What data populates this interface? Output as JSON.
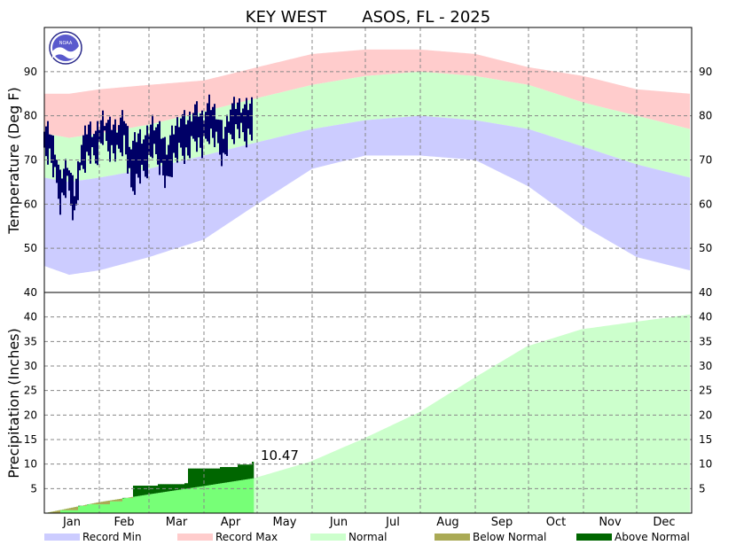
{
  "chart_data": {
    "type": "area",
    "title": "KEY WEST       ASOS, FL - 2025",
    "months": [
      "Jan",
      "Feb",
      "Mar",
      "Apr",
      "May",
      "Jun",
      "Jul",
      "Aug",
      "Sep",
      "Oct",
      "Nov",
      "Dec"
    ],
    "temperature": {
      "ylabel": "Temperature (Deg F)",
      "ylim": [
        40,
        100
      ],
      "ticks": [
        40,
        50,
        60,
        70,
        80,
        90
      ],
      "normal_high": [
        [
          1,
          76
        ],
        [
          15,
          75
        ],
        [
          32,
          76
        ],
        [
          60,
          78
        ],
        [
          91,
          81
        ],
        [
          121,
          84
        ],
        [
          152,
          87
        ],
        [
          182,
          89
        ],
        [
          213,
          90
        ],
        [
          244,
          89
        ],
        [
          274,
          87
        ],
        [
          305,
          83
        ],
        [
          335,
          80
        ],
        [
          365,
          77
        ]
      ],
      "normal_low": [
        [
          1,
          66
        ],
        [
          15,
          65
        ],
        [
          32,
          66
        ],
        [
          60,
          68
        ],
        [
          91,
          71
        ],
        [
          121,
          74
        ],
        [
          152,
          77
        ],
        [
          182,
          79
        ],
        [
          213,
          80
        ],
        [
          244,
          79
        ],
        [
          274,
          77
        ],
        [
          305,
          73
        ],
        [
          335,
          69
        ],
        [
          365,
          66
        ]
      ],
      "record_high": [
        [
          1,
          85
        ],
        [
          15,
          85
        ],
        [
          32,
          86
        ],
        [
          60,
          87
        ],
        [
          91,
          88
        ],
        [
          121,
          91
        ],
        [
          152,
          94
        ],
        [
          182,
          95
        ],
        [
          213,
          95
        ],
        [
          244,
          94
        ],
        [
          274,
          91
        ],
        [
          305,
          89
        ],
        [
          335,
          86
        ],
        [
          365,
          85
        ]
      ],
      "record_low": [
        [
          1,
          46
        ],
        [
          15,
          44
        ],
        [
          32,
          45
        ],
        [
          60,
          48
        ],
        [
          91,
          52
        ],
        [
          121,
          60
        ],
        [
          152,
          68
        ],
        [
          182,
          71
        ],
        [
          213,
          71
        ],
        [
          244,
          70
        ],
        [
          274,
          64
        ],
        [
          305,
          55
        ],
        [
          335,
          48
        ],
        [
          365,
          45
        ]
      ],
      "observed_2025": [
        [
          1,
          72,
          77
        ],
        [
          4,
          71,
          77
        ],
        [
          7,
          66,
          73
        ],
        [
          10,
          60,
          66
        ],
        [
          14,
          64,
          70
        ],
        [
          18,
          57,
          63
        ],
        [
          22,
          68,
          74
        ],
        [
          26,
          71,
          78
        ],
        [
          30,
          70,
          76
        ],
        [
          34,
          75,
          80
        ],
        [
          38,
          72,
          78
        ],
        [
          42,
          71,
          78
        ],
        [
          46,
          74,
          80
        ],
        [
          50,
          63,
          73
        ],
        [
          54,
          66,
          76
        ],
        [
          58,
          67,
          75
        ],
        [
          62,
          72,
          79
        ],
        [
          66,
          69,
          77
        ],
        [
          70,
          64,
          73
        ],
        [
          74,
          70,
          77
        ],
        [
          78,
          72,
          80
        ],
        [
          82,
          71,
          79
        ],
        [
          86,
          75,
          82
        ],
        [
          90,
          72,
          80
        ],
        [
          94,
          76,
          83
        ],
        [
          98,
          74,
          81
        ],
        [
          102,
          70,
          76
        ],
        [
          106,
          75,
          82
        ],
        [
          110,
          77,
          83
        ],
        [
          114,
          75,
          82
        ],
        [
          118,
          76,
          83
        ]
      ]
    },
    "precipitation": {
      "ylabel": "Precipitation (Inches)",
      "ylim": [
        0,
        45
      ],
      "ticks": [
        5,
        10,
        15,
        20,
        25,
        30,
        35,
        40
      ],
      "normal_cumulative": [
        [
          1,
          0
        ],
        [
          31,
          2.2
        ],
        [
          59,
          3.8
        ],
        [
          90,
          5.5
        ],
        [
          120,
          7.2
        ],
        [
          151,
          10.5
        ],
        [
          181,
          15.2
        ],
        [
          212,
          20.5
        ],
        [
          243,
          27.5
        ],
        [
          273,
          34.0
        ],
        [
          304,
          37.5
        ],
        [
          334,
          39.0
        ],
        [
          365,
          40.5
        ]
      ],
      "observed_cumulative": [
        [
          1,
          0
        ],
        [
          10,
          0.6
        ],
        [
          20,
          1.5
        ],
        [
          25,
          1.8
        ],
        [
          38,
          2.4
        ],
        [
          45,
          3.1
        ],
        [
          51,
          5.6
        ],
        [
          65,
          5.9
        ],
        [
          80,
          6.1
        ],
        [
          82,
          9.1
        ],
        [
          95,
          9.1
        ],
        [
          100,
          9.4
        ],
        [
          110,
          9.9
        ],
        [
          118,
          10.47
        ]
      ],
      "annotation": "10.47"
    },
    "legend": [
      {
        "label": "Record Min",
        "color": "#ccccff"
      },
      {
        "label": "Record Max",
        "color": "#ffcccc"
      },
      {
        "label": "Normal",
        "color": "#ccffcc"
      },
      {
        "label": "Below Normal",
        "color": "#aaaa55"
      },
      {
        "label": "Above Normal",
        "color": "#006600"
      }
    ],
    "colors": {
      "observed_temp": "#000066",
      "observed_precip_below": "#77ff77",
      "precip_normal": "#ccffcc"
    }
  }
}
